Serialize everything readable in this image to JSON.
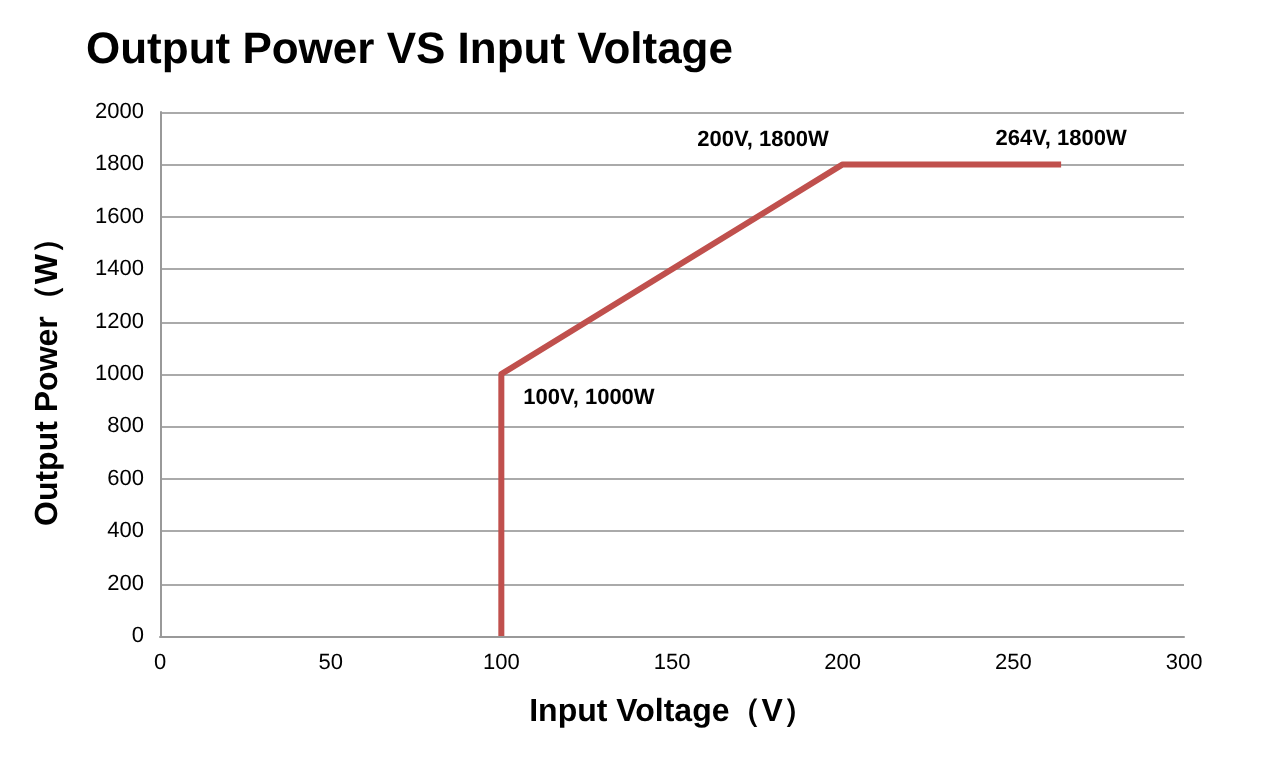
{
  "chart_data": {
    "type": "line",
    "title": "Output Power VS Input Voltage",
    "xlabel": "Input Voltage（V）",
    "ylabel": "Output Power（W）",
    "x": [
      100,
      100,
      200,
      264
    ],
    "series": [
      {
        "color": "#c0504d",
        "values": [
          0,
          1000,
          1800,
          1800
        ]
      }
    ],
    "xlim": [
      0,
      300
    ],
    "xticks": [
      0,
      50,
      100,
      150,
      200,
      250,
      300
    ],
    "ylim": [
      0,
      2000
    ],
    "yticks": [
      0,
      200,
      400,
      600,
      800,
      1000,
      1200,
      1400,
      1600,
      1800,
      2000
    ],
    "grid": "y",
    "marker": "none",
    "line_style": "solid",
    "annotations": [
      {
        "text": "100V, 1000W",
        "x": 100,
        "y": 1000
      },
      {
        "text": "200V, 1800W",
        "x": 200,
        "y": 1800
      },
      {
        "text": "264V, 1800W",
        "x": 264,
        "y": 1800
      }
    ]
  }
}
